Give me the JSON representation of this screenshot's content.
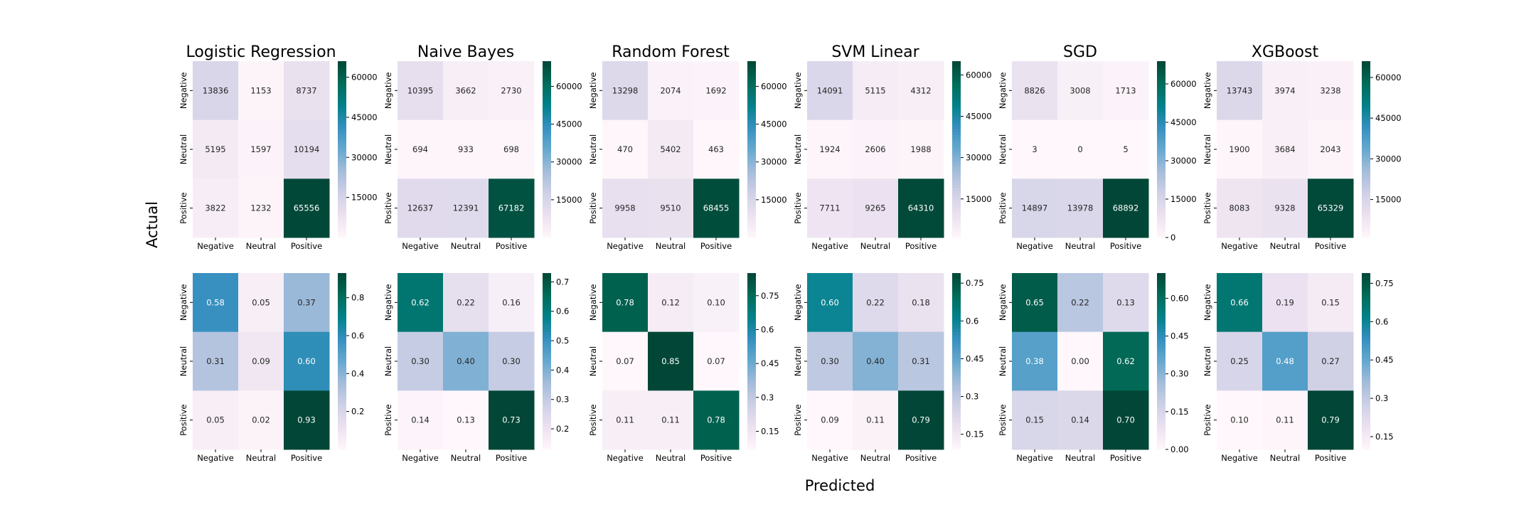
{
  "figure": {
    "xlabel": "Predicted",
    "ylabel": "Actual"
  },
  "chart_data": {
    "type": "heatmap",
    "class_labels": [
      "Negative",
      "Neutral",
      "Positive"
    ],
    "colormap": [
      "#fff7fb",
      "#ece2f0",
      "#d0d1e6",
      "#a6bddb",
      "#67a9cf",
      "#3690c0",
      "#02818a",
      "#016c59",
      "#014636"
    ],
    "models": [
      {
        "title": "Logistic Regression",
        "counts": [
          [
            13836,
            1153,
            8737
          ],
          [
            5195,
            1597,
            10194
          ],
          [
            3822,
            1232,
            65556
          ]
        ],
        "counts_colorbar": {
          "range": [
            0,
            66000
          ],
          "ticks": [
            15000,
            30000,
            45000,
            60000
          ]
        },
        "normalized": [
          [
            0.58,
            0.05,
            0.37
          ],
          [
            0.31,
            0.09,
            0.6
          ],
          [
            0.05,
            0.02,
            0.93
          ]
        ],
        "normalized_colorbar": {
          "range": [
            0.0,
            0.93
          ],
          "ticks": [
            0.2,
            0.4,
            0.6,
            0.8
          ]
        }
      },
      {
        "title": "Naive Bayes",
        "counts": [
          [
            10395,
            3662,
            2730
          ],
          [
            694,
            933,
            698
          ],
          [
            12637,
            12391,
            67182
          ]
        ],
        "counts_colorbar": {
          "range": [
            0,
            70000
          ],
          "ticks": [
            15000,
            30000,
            45000,
            60000
          ]
        },
        "normalized": [
          [
            0.62,
            0.22,
            0.16
          ],
          [
            0.3,
            0.4,
            0.3
          ],
          [
            0.14,
            0.13,
            0.73
          ]
        ],
        "normalized_colorbar": {
          "range": [
            0.13,
            0.73
          ],
          "ticks": [
            0.2,
            0.3,
            0.4,
            0.5,
            0.6,
            0.7
          ]
        }
      },
      {
        "title": "Random Forest",
        "counts": [
          [
            13298,
            2074,
            1692
          ],
          [
            470,
            5402,
            463
          ],
          [
            9958,
            9510,
            68455
          ]
        ],
        "counts_colorbar": {
          "range": [
            0,
            70000
          ],
          "ticks": [
            15000,
            30000,
            45000,
            60000
          ]
        },
        "normalized": [
          [
            0.78,
            0.12,
            0.1
          ],
          [
            0.07,
            0.85,
            0.07
          ],
          [
            0.11,
            0.11,
            0.78
          ]
        ],
        "normalized_colorbar": {
          "range": [
            0.07,
            0.85
          ],
          "ticks": [
            0.15,
            0.3,
            0.45,
            0.6,
            0.75
          ]
        }
      },
      {
        "title": "SVM Linear",
        "counts": [
          [
            14091,
            5115,
            4312
          ],
          [
            1924,
            2606,
            1988
          ],
          [
            7711,
            9265,
            64310
          ]
        ],
        "counts_colorbar": {
          "range": [
            1000,
            65000
          ],
          "ticks": [
            15000,
            30000,
            45000,
            60000
          ]
        },
        "normalized": [
          [
            0.6,
            0.22,
            0.18
          ],
          [
            0.3,
            0.4,
            0.31
          ],
          [
            0.09,
            0.11,
            0.79
          ]
        ],
        "normalized_colorbar": {
          "range": [
            0.09,
            0.79
          ],
          "ticks": [
            0.15,
            0.3,
            0.45,
            0.6,
            0.75
          ]
        }
      },
      {
        "title": "SGD",
        "counts": [
          [
            8826,
            3008,
            1713
          ],
          [
            3,
            0,
            5
          ],
          [
            14897,
            13978,
            68892
          ]
        ],
        "counts_colorbar": {
          "range": [
            0,
            68892
          ],
          "ticks": [
            0,
            15000,
            30000,
            45000,
            60000
          ]
        },
        "normalized": [
          [
            0.65,
            0.22,
            0.13
          ],
          [
            0.38,
            0.0,
            0.62
          ],
          [
            0.15,
            0.14,
            0.7
          ]
        ],
        "normalized_colorbar": {
          "range": [
            0.0,
            0.7
          ],
          "ticks": [
            0.0,
            0.15,
            0.3,
            0.45,
            0.6
          ]
        },
        "normalized_colorbar_labels": [
          "0.00",
          "0.15",
          "0.30",
          "0.45",
          "0.60"
        ]
      },
      {
        "title": "XGBoost",
        "counts": [
          [
            13743,
            3974,
            3238
          ],
          [
            1900,
            3684,
            2043
          ],
          [
            8083,
            9328,
            65329
          ]
        ],
        "counts_colorbar": {
          "range": [
            1000,
            66000
          ],
          "ticks": [
            15000,
            30000,
            45000,
            60000
          ]
        },
        "normalized": [
          [
            0.66,
            0.19,
            0.15
          ],
          [
            0.25,
            0.48,
            0.27
          ],
          [
            0.1,
            0.11,
            0.79
          ]
        ],
        "normalized_colorbar": {
          "range": [
            0.1,
            0.79
          ],
          "ticks": [
            0.15,
            0.3,
            0.45,
            0.6,
            0.75
          ]
        }
      }
    ]
  }
}
